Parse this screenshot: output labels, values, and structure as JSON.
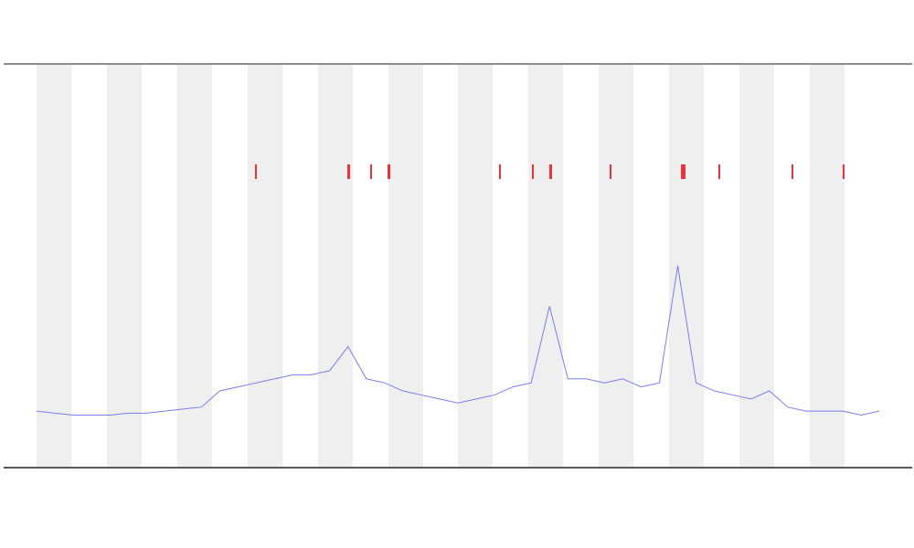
{
  "chart_data": {
    "type": "line",
    "x": [
      0,
      1,
      2,
      3,
      4,
      5,
      6,
      7,
      8,
      9,
      10,
      11,
      12,
      13,
      14,
      15,
      16,
      17,
      18,
      19,
      20,
      21,
      22,
      23,
      24,
      25,
      26,
      27,
      28,
      29,
      30,
      31,
      32,
      33,
      34,
      35,
      36,
      37,
      38,
      39,
      40,
      41,
      42,
      43,
      44,
      45,
      46
    ],
    "series": [
      {
        "color": "#7b7bf0",
        "values": [
          14,
          13.5,
          13,
          13,
          13,
          13.5,
          13.5,
          14,
          14.5,
          15,
          19,
          20,
          21,
          22,
          23,
          23,
          24,
          30,
          22,
          21,
          19,
          18,
          17,
          16,
          17,
          18,
          20,
          21,
          40,
          22,
          22,
          21,
          22,
          20,
          21,
          50,
          21,
          19,
          18,
          17,
          19,
          15,
          14,
          14,
          14,
          13,
          14
        ]
      }
    ],
    "xlim": [
      0,
      46
    ],
    "ylim": [
      0,
      100
    ]
  }
}
